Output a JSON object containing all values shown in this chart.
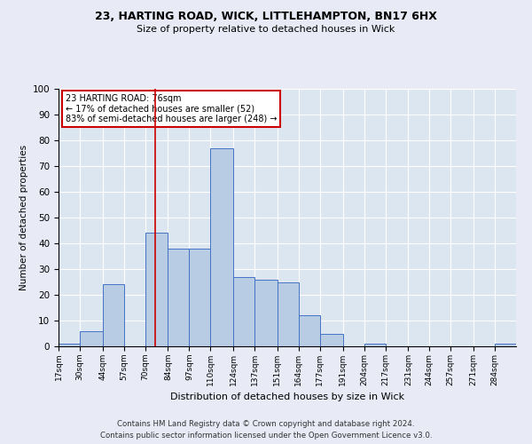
{
  "title1": "23, HARTING ROAD, WICK, LITTLEHAMPTON, BN17 6HX",
  "title2": "Size of property relative to detached houses in Wick",
  "xlabel": "Distribution of detached houses by size in Wick",
  "ylabel": "Number of detached properties",
  "bin_labels": [
    "17sqm",
    "30sqm",
    "44sqm",
    "57sqm",
    "70sqm",
    "84sqm",
    "97sqm",
    "110sqm",
    "124sqm",
    "137sqm",
    "151sqm",
    "164sqm",
    "177sqm",
    "191sqm",
    "204sqm",
    "217sqm",
    "231sqm",
    "244sqm",
    "257sqm",
    "271sqm",
    "284sqm"
  ],
  "bar_values": [
    1,
    6,
    24,
    0,
    44,
    38,
    38,
    77,
    27,
    26,
    25,
    12,
    5,
    0,
    1,
    0,
    0,
    0,
    0,
    0,
    1
  ],
  "bar_color": "#b8cce4",
  "bar_edge_color": "#4472c4",
  "red_line_x": 76,
  "bin_edges": [
    17,
    30,
    44,
    57,
    70,
    84,
    97,
    110,
    124,
    137,
    151,
    164,
    177,
    191,
    204,
    217,
    231,
    244,
    257,
    271,
    284,
    297
  ],
  "annotation_title": "23 HARTING ROAD: 76sqm",
  "annotation_line1": "← 17% of detached houses are smaller (52)",
  "annotation_line2": "83% of semi-detached houses are larger (248) →",
  "annotation_box_color": "#ffffff",
  "annotation_box_edge": "#cc0000",
  "footer1": "Contains HM Land Registry data © Crown copyright and database right 2024.",
  "footer2": "Contains public sector information licensed under the Open Government Licence v3.0.",
  "ylim": [
    0,
    100
  ],
  "background_color": "#e8eaf6",
  "plot_background": "#dce6f1"
}
